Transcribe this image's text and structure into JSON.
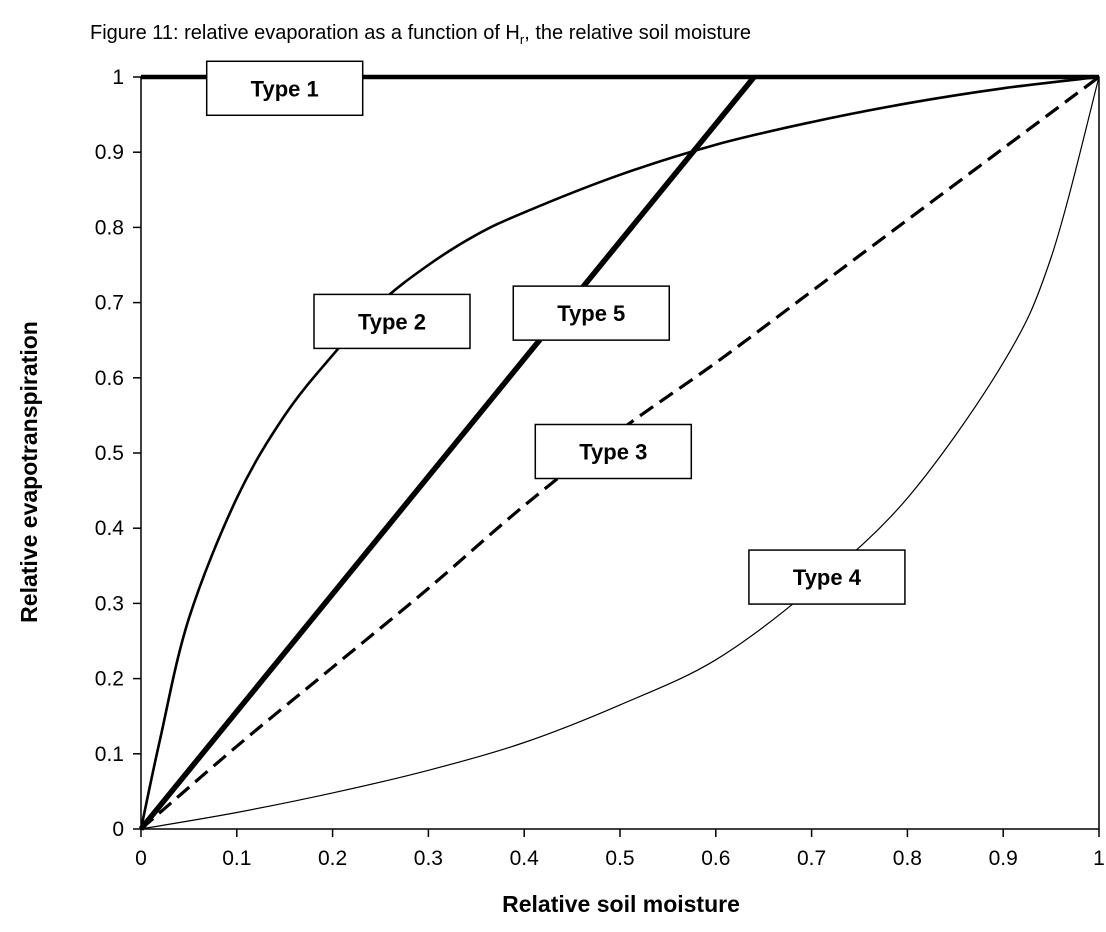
{
  "caption": {
    "prefix": "Figure 11: relative evaporation as a function of H",
    "subscript": "r",
    "suffix": ", the relative soil moisture"
  },
  "chart_data": {
    "type": "line",
    "title": "Figure 11: relative evaporation as a function of Hr, the relative soil moisture",
    "xlabel": "Relative soil moisture",
    "ylabel": "Relative evapotranspiration",
    "xlim": [
      0,
      1
    ],
    "ylim": [
      0,
      1
    ],
    "xticks": [
      "0",
      "0.1",
      "0.2",
      "0.3",
      "0.4",
      "0.5",
      "0.6",
      "0.7",
      "0.8",
      "0.9",
      "1"
    ],
    "yticks": [
      "0",
      "0.1",
      "0.2",
      "0.3",
      "0.4",
      "0.5",
      "0.6",
      "0.7",
      "0.8",
      "0.9",
      "1"
    ],
    "grid": false,
    "series": [
      {
        "name": "Type 1",
        "style": "thick",
        "x": [
          0,
          1
        ],
        "y": [
          1,
          1
        ]
      },
      {
        "name": "Type 2",
        "style": "medium",
        "x": [
          0,
          0.02,
          0.05,
          0.1,
          0.15,
          0.2,
          0.25,
          0.3,
          0.35,
          0.4,
          0.5,
          0.6,
          0.7,
          0.8,
          0.9,
          1
        ],
        "y": [
          0,
          0.12,
          0.28,
          0.44,
          0.55,
          0.63,
          0.7,
          0.75,
          0.79,
          0.82,
          0.87,
          0.91,
          0.94,
          0.965,
          0.985,
          1
        ]
      },
      {
        "name": "Type 3",
        "style": "dashed",
        "x": [
          0,
          0.1,
          0.2,
          0.3,
          0.4,
          0.5,
          0.6,
          0.7,
          0.8,
          0.9,
          1
        ],
        "y": [
          0,
          0.11,
          0.215,
          0.32,
          0.43,
          0.53,
          0.62,
          0.715,
          0.81,
          0.905,
          1
        ]
      },
      {
        "name": "Type 4",
        "style": "thin",
        "x": [
          0,
          0.1,
          0.2,
          0.3,
          0.4,
          0.5,
          0.6,
          0.7,
          0.8,
          0.9,
          0.95,
          1
        ],
        "y": [
          0,
          0.022,
          0.048,
          0.078,
          0.115,
          0.165,
          0.225,
          0.32,
          0.44,
          0.62,
          0.76,
          1
        ]
      },
      {
        "name": "Type 5",
        "style": "extra-thick",
        "x": [
          0,
          0.64
        ],
        "y": [
          0,
          1
        ]
      }
    ],
    "labels": [
      {
        "text": "Type 1",
        "x": 0.15,
        "y": 0.985
      },
      {
        "text": "Type 2",
        "x": 0.262,
        "y": 0.675
      },
      {
        "text": "Type 5",
        "x": 0.47,
        "y": 0.686
      },
      {
        "text": "Type 3",
        "x": 0.493,
        "y": 0.502
      },
      {
        "text": "Type 4",
        "x": 0.716,
        "y": 0.335
      }
    ],
    "colors": {
      "line": "#000000",
      "background": "#ffffff"
    }
  }
}
